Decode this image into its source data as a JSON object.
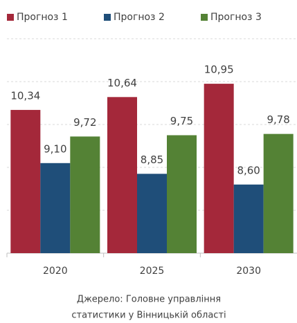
{
  "chart_data": {
    "type": "bar",
    "categories": [
      "2020",
      "2025",
      "2030"
    ],
    "series": [
      {
        "name": "Прогноз 1",
        "color": "#a4283a",
        "values": [
          10.34,
          10.64,
          10.95
        ],
        "value_labels": [
          "10,34",
          "10,64",
          "10,95"
        ]
      },
      {
        "name": "Прогноз 2",
        "color": "#1f4e79",
        "values": [
          9.1,
          8.85,
          8.6
        ],
        "value_labels": [
          "9,10",
          "8,85",
          "8,60"
        ]
      },
      {
        "name": "Прогноз 3",
        "color": "#548235",
        "values": [
          9.72,
          9.75,
          9.78
        ],
        "value_labels": [
          "9,72",
          "9,75",
          "9,78"
        ]
      }
    ],
    "ylim": [
      7,
      12
    ],
    "yticks": [
      8,
      9,
      10,
      11,
      12
    ],
    "grid": true,
    "source": [
      "Джерело: Головне управління",
      "статистики у Вінницькій області"
    ]
  }
}
